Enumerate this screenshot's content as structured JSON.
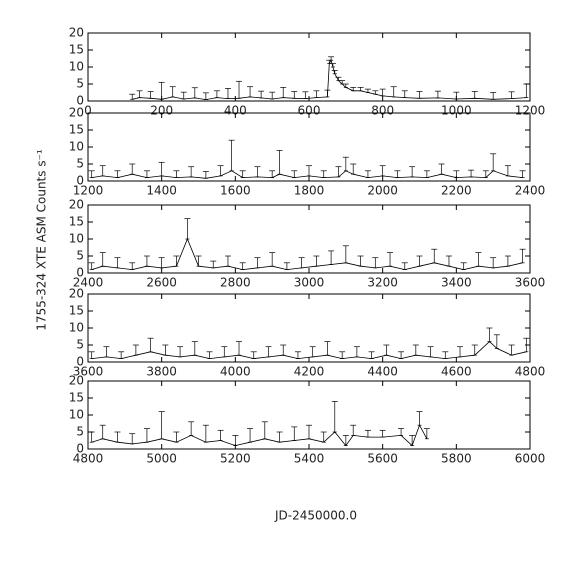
{
  "ylabel": "1755-324 XTE ASM Counts s⁻¹",
  "xlabel": "JD-2450000.0",
  "chart_data": [
    {
      "type": "line",
      "xlim": [
        0,
        1200
      ],
      "xticks": [
        0,
        200,
        400,
        600,
        800,
        1000,
        1200
      ],
      "ylim": [
        0,
        20
      ],
      "yticks": [
        0,
        5,
        10,
        15,
        20
      ],
      "color": "#000000",
      "x": [
        120,
        140,
        170,
        200,
        230,
        260,
        290,
        320,
        350,
        380,
        410,
        440,
        470,
        500,
        530,
        560,
        590,
        620,
        650,
        655,
        660,
        665,
        670,
        680,
        690,
        700,
        720,
        740,
        760,
        780,
        800,
        830,
        860,
        900,
        950,
        1000,
        1050,
        1100,
        1150,
        1190
      ],
      "values": [
        0.5,
        1,
        0.8,
        0.5,
        1.2,
        0.6,
        0.9,
        0.4,
        1,
        0.7,
        0.8,
        1.2,
        0.9,
        0.6,
        1,
        0.8,
        0.7,
        1,
        1.2,
        11,
        12,
        10,
        8,
        6,
        5,
        4,
        3,
        3,
        2.5,
        2,
        1.5,
        1.2,
        1,
        0.8,
        0.9,
        0.6,
        0.8,
        0.5,
        0.7,
        1
      ],
      "errors": [
        1.5,
        2,
        2,
        5,
        3,
        2,
        3,
        2,
        2,
        3,
        5,
        3,
        2,
        2,
        3,
        2,
        2,
        2,
        2,
        1,
        1,
        1,
        1,
        1,
        1,
        1,
        1,
        1,
        1,
        1,
        2,
        3,
        2,
        2,
        2,
        2,
        2,
        2,
        2,
        4
      ]
    },
    {
      "type": "line",
      "xlim": [
        1200,
        2400
      ],
      "xticks": [
        1200,
        1400,
        1600,
        1800,
        2000,
        2200,
        2400
      ],
      "ylim": [
        0,
        20
      ],
      "yticks": [
        0,
        5,
        10,
        15,
        20
      ],
      "color": "#000000",
      "x": [
        1210,
        1240,
        1280,
        1320,
        1360,
        1400,
        1440,
        1480,
        1520,
        1560,
        1590,
        1620,
        1660,
        1700,
        1720,
        1760,
        1800,
        1840,
        1880,
        1900,
        1920,
        1960,
        2000,
        2040,
        2080,
        2120,
        2160,
        2200,
        2240,
        2280,
        2300,
        2340,
        2380
      ],
      "values": [
        1,
        1.5,
        1,
        2,
        1,
        1.5,
        1,
        1.2,
        0.8,
        1.5,
        3,
        1,
        1.2,
        1,
        2,
        1,
        1.5,
        1,
        1.2,
        3,
        2,
        1,
        1.5,
        1,
        1.2,
        1,
        2,
        1,
        1.2,
        1,
        3,
        1.5,
        1
      ],
      "errors": [
        2,
        3,
        2,
        3,
        2,
        4,
        2,
        3,
        2,
        3,
        9,
        2,
        3,
        2,
        7,
        2,
        3,
        2,
        3,
        4,
        3,
        2,
        3,
        2,
        3,
        2,
        3,
        2,
        2,
        2,
        5,
        3,
        2
      ]
    },
    {
      "type": "line",
      "xlim": [
        2400,
        3600
      ],
      "xticks": [
        2400,
        2600,
        2800,
        3000,
        3200,
        3400,
        3600
      ],
      "ylim": [
        0,
        20
      ],
      "yticks": [
        0,
        5,
        10,
        15,
        20
      ],
      "color": "#000000",
      "x": [
        2410,
        2440,
        2480,
        2520,
        2560,
        2600,
        2640,
        2670,
        2700,
        2740,
        2780,
        2820,
        2860,
        2900,
        2940,
        2980,
        3020,
        3060,
        3100,
        3140,
        3180,
        3220,
        3260,
        3300,
        3340,
        3380,
        3420,
        3460,
        3500,
        3540,
        3580
      ],
      "values": [
        1,
        2,
        1.5,
        1,
        2,
        1.5,
        2,
        10,
        2,
        1.5,
        2,
        1,
        1.5,
        2,
        1,
        1.5,
        2,
        2.5,
        3,
        2,
        1.5,
        2,
        1,
        2,
        3,
        2,
        1,
        2,
        1.5,
        2,
        3
      ],
      "errors": [
        2,
        4,
        3,
        2,
        3,
        3,
        3,
        6,
        3,
        2,
        3,
        2,
        3,
        4,
        2,
        3,
        3,
        4,
        5,
        3,
        3,
        4,
        2,
        3,
        4,
        3,
        2,
        4,
        3,
        3,
        4
      ]
    },
    {
      "type": "line",
      "xlim": [
        3600,
        4800
      ],
      "xticks": [
        3600,
        3800,
        4000,
        4200,
        4400,
        4600,
        4800
      ],
      "ylim": [
        0,
        20
      ],
      "yticks": [
        0,
        5,
        10,
        15,
        20
      ],
      "color": "#000000",
      "x": [
        3610,
        3650,
        3690,
        3730,
        3770,
        3810,
        3850,
        3890,
        3930,
        3970,
        4010,
        4050,
        4090,
        4130,
        4170,
        4210,
        4250,
        4290,
        4330,
        4370,
        4410,
        4450,
        4490,
        4530,
        4570,
        4610,
        4650,
        4690,
        4710,
        4750,
        4790
      ],
      "values": [
        1,
        1.5,
        1,
        2,
        3,
        2,
        1.5,
        2,
        1,
        1.5,
        2,
        1,
        1.5,
        2,
        1,
        1.5,
        2,
        1,
        1.5,
        1,
        2,
        1,
        2,
        1.5,
        1,
        1.5,
        2,
        6,
        4,
        2,
        3
      ],
      "errors": [
        2,
        3,
        2,
        3,
        4,
        3,
        3,
        4,
        2,
        3,
        4,
        2,
        3,
        3,
        2,
        3,
        4,
        2,
        3,
        2,
        3,
        2,
        3,
        3,
        2,
        3,
        3,
        4,
        4,
        3,
        4
      ]
    },
    {
      "type": "line",
      "xlim": [
        4800,
        6000
      ],
      "xticks": [
        4800,
        5000,
        5200,
        5400,
        5600,
        5800,
        6000
      ],
      "ylim": [
        0,
        20
      ],
      "yticks": [
        0,
        5,
        10,
        15,
        20
      ],
      "color": "#000000",
      "x": [
        4810,
        4840,
        4880,
        4920,
        4960,
        5000,
        5040,
        5080,
        5120,
        5160,
        5200,
        5240,
        5280,
        5320,
        5360,
        5400,
        5440,
        5470,
        5500,
        5520,
        5560,
        5600,
        5650,
        5680,
        5700,
        5720
      ],
      "values": [
        2,
        3,
        2,
        1.5,
        2,
        3,
        2,
        4,
        2,
        2.5,
        1,
        2,
        3,
        2,
        2.5,
        3,
        2,
        5,
        1,
        4,
        3.5,
        3.5,
        4,
        1,
        7,
        3
      ],
      "errors": [
        3,
        4,
        3,
        3,
        4,
        8,
        3,
        4,
        5,
        3,
        3,
        4,
        5,
        3,
        4,
        4,
        3,
        9,
        3,
        3,
        2,
        2,
        2,
        3,
        4,
        3
      ]
    }
  ]
}
